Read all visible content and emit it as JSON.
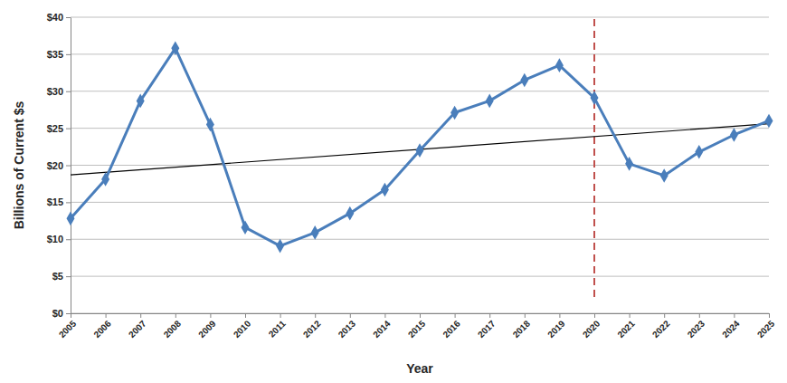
{
  "chart_data": {
    "type": "line",
    "x_label": "Year",
    "y_label": "Billions of Current $s",
    "x": [
      2005,
      2006,
      2007,
      2008,
      2009,
      2010,
      2011,
      2012,
      2013,
      2014,
      2015,
      2016,
      2017,
      2018,
      2019,
      2020,
      2021,
      2022,
      2023,
      2024,
      2025
    ],
    "series": [
      {
        "color": "#4a7ebb",
        "marker": "diamond",
        "values": [
          12.8,
          18.1,
          28.7,
          35.8,
          25.5,
          11.6,
          9.1,
          10.9,
          13.5,
          16.7,
          22.0,
          27.1,
          28.7,
          31.5,
          33.5,
          29.1,
          20.2,
          18.6,
          21.8,
          24.1,
          26.0
        ]
      }
    ],
    "trend_line": {
      "x": [
        2005,
        2025
      ],
      "values": [
        18.7,
        25.6
      ],
      "color": "#000000"
    },
    "reference_line": {
      "x": 2020,
      "color": "#c0504d",
      "line_style": "dashed"
    },
    "xlim": [
      2005,
      2025
    ],
    "xticks": [
      2005,
      2006,
      2007,
      2008,
      2009,
      2010,
      2011,
      2012,
      2013,
      2014,
      2015,
      2016,
      2017,
      2018,
      2019,
      2020,
      2021,
      2022,
      2023,
      2024,
      2025
    ],
    "ylim": [
      0,
      40
    ],
    "yticks": [
      {
        "value": 0,
        "label": "$0"
      },
      {
        "value": 5,
        "label": "$5"
      },
      {
        "value": 10,
        "label": "$10"
      },
      {
        "value": 15,
        "label": "$15"
      },
      {
        "value": 20,
        "label": "$20"
      },
      {
        "value": 25,
        "label": "$25"
      },
      {
        "value": 30,
        "label": "$30"
      },
      {
        "value": 35,
        "label": "$35"
      },
      {
        "value": 40,
        "label": "$40"
      }
    ],
    "grid": true
  }
}
